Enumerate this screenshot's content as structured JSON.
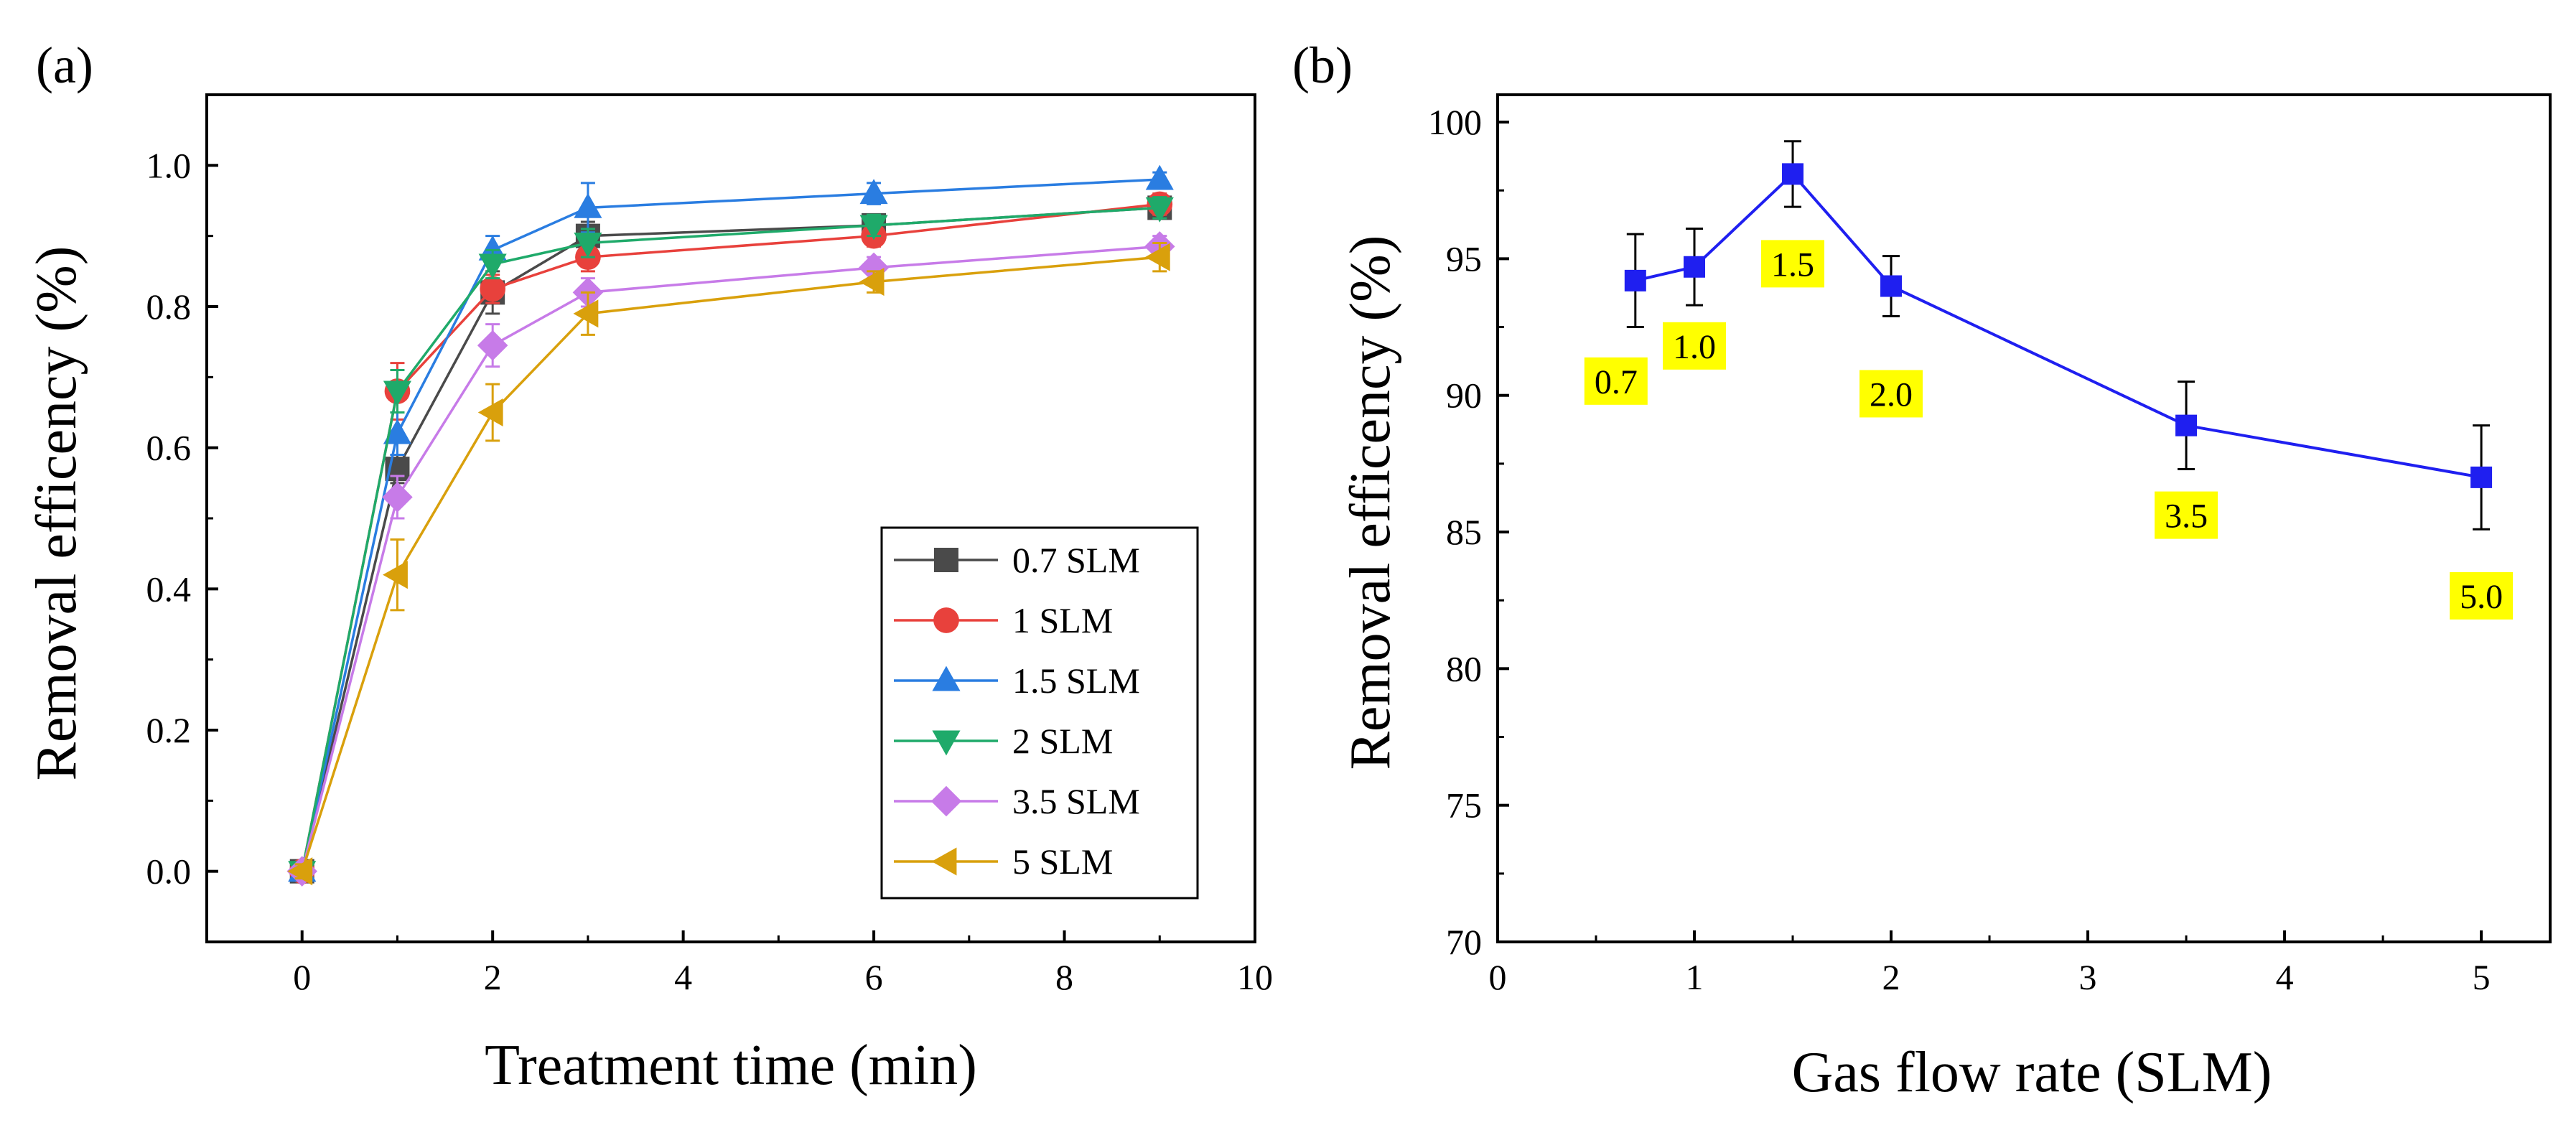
{
  "chart_data": [
    {
      "panel_label": "(a)",
      "type": "line",
      "xlabel": "Treatment time (min)",
      "ylabel": "Removal efficency (%)",
      "xlim": [
        -1,
        10
      ],
      "ylim": [
        -0.1,
        1.1
      ],
      "xticks": [
        0,
        2,
        4,
        6,
        8,
        10
      ],
      "yticks": [
        0.0,
        0.2,
        0.4,
        0.6,
        0.8,
        1.0
      ],
      "xtick_labels": [
        "0",
        "2",
        "4",
        "6",
        "8",
        "10"
      ],
      "ytick_labels": [
        "0.0",
        "0.2",
        "0.4",
        "0.6",
        "0.8",
        "1.0"
      ],
      "legend_position": "bottom-right",
      "x": [
        0,
        1,
        2,
        3,
        6,
        9
      ],
      "series": [
        {
          "name": "0.7 SLM",
          "color": "#4a4a4a",
          "marker": "square",
          "values": [
            0.0,
            0.57,
            0.82,
            0.9,
            0.915,
            0.94
          ],
          "errors": [
            0.01,
            0.02,
            0.03,
            0.02,
            0.015,
            0.015
          ]
        },
        {
          "name": "1 SLM",
          "color": "#e8413c",
          "marker": "circle",
          "values": [
            0.0,
            0.68,
            0.825,
            0.87,
            0.9,
            0.945
          ],
          "errors": [
            0.01,
            0.04,
            0.02,
            0.02,
            0.015,
            0.015
          ]
        },
        {
          "name": "1.5 SLM",
          "color": "#2a7de1",
          "marker": "triangle-up",
          "values": [
            0.0,
            0.62,
            0.88,
            0.94,
            0.96,
            0.98
          ],
          "errors": [
            0.01,
            0.03,
            0.02,
            0.035,
            0.015,
            0.01
          ]
        },
        {
          "name": "2 SLM",
          "color": "#1faa6a",
          "marker": "triangle-down",
          "values": [
            0.0,
            0.68,
            0.86,
            0.89,
            0.915,
            0.94
          ],
          "errors": [
            0.01,
            0.03,
            0.02,
            0.02,
            0.015,
            0.015
          ]
        },
        {
          "name": "3.5 SLM",
          "color": "#c77be8",
          "marker": "diamond",
          "values": [
            0.0,
            0.53,
            0.745,
            0.82,
            0.855,
            0.885
          ],
          "errors": [
            0.01,
            0.03,
            0.03,
            0.02,
            0.015,
            0.015
          ]
        },
        {
          "name": "5 SLM",
          "color": "#d9a00c",
          "marker": "triangle-left",
          "values": [
            0.0,
            0.42,
            0.65,
            0.79,
            0.835,
            0.87
          ],
          "errors": [
            0.01,
            0.05,
            0.04,
            0.03,
            0.015,
            0.02
          ]
        }
      ]
    },
    {
      "panel_label": "(b)",
      "type": "line",
      "xlabel": "Gas flow rate (SLM)",
      "ylabel": "Removal efficency (%)",
      "xlim": [
        0,
        5.35
      ],
      "ylim": [
        70,
        101
      ],
      "xticks": [
        0,
        1,
        2,
        3,
        4,
        5
      ],
      "yticks": [
        70,
        75,
        80,
        85,
        90,
        95,
        100
      ],
      "xtick_labels": [
        "0",
        "1",
        "2",
        "3",
        "4",
        "5"
      ],
      "ytick_labels": [
        "70",
        "75",
        "80",
        "85",
        "90",
        "95",
        "100"
      ],
      "series": [
        {
          "name": "Removal efficency",
          "color": "#1f1ff0",
          "marker": "square",
          "x": [
            0.7,
            1.0,
            1.5,
            2.0,
            3.5,
            5.0
          ],
          "values": [
            94.2,
            94.7,
            98.1,
            94.0,
            88.9,
            87.0
          ],
          "errors": [
            1.7,
            1.4,
            1.2,
            1.1,
            1.6,
            1.9
          ]
        }
      ],
      "annotations": [
        {
          "text": "0.7",
          "x": 0.7,
          "y": 94.2,
          "placement": "below-left"
        },
        {
          "text": "1.0",
          "x": 1.0,
          "y": 94.7,
          "placement": "below"
        },
        {
          "text": "1.5",
          "x": 1.5,
          "y": 98.1,
          "placement": "below"
        },
        {
          "text": "2.0",
          "x": 2.0,
          "y": 94.0,
          "placement": "below"
        },
        {
          "text": "3.5",
          "x": 3.5,
          "y": 88.9,
          "placement": "below"
        },
        {
          "text": "5.0",
          "x": 5.0,
          "y": 87.0,
          "placement": "below"
        }
      ],
      "annotation_background": "#ffff00"
    }
  ]
}
